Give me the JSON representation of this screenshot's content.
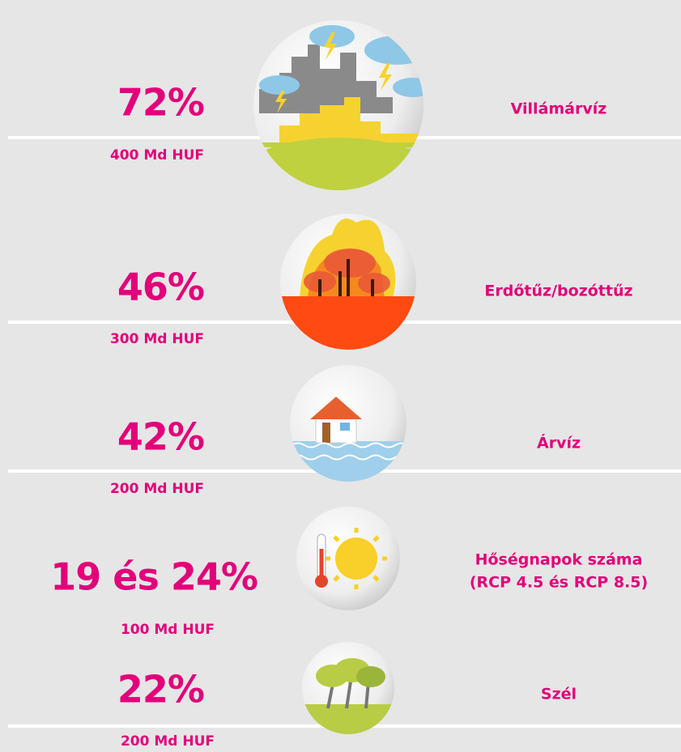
{
  "items": [
    {
      "value": "72%",
      "cost": "400 Md HUF",
      "label_lines": [
        "Villámárvíz"
      ]
    },
    {
      "value": "46%",
      "cost": "300 Md HUF",
      "label_lines": [
        "Erdőtűz/bozóttűz"
      ]
    },
    {
      "value": "42%",
      "cost": "200 Md HUF",
      "label_lines": [
        "Árvíz"
      ]
    },
    {
      "value": "19 és 24%",
      "cost": "100 Md HUF",
      "label_lines": [
        "Hőségnapok száma",
        "(RCP 4.5 és RCP 8.5)"
      ]
    },
    {
      "value": "22%",
      "cost": "200 Md HUF",
      "label_lines": [
        "Szél"
      ]
    }
  ]
}
